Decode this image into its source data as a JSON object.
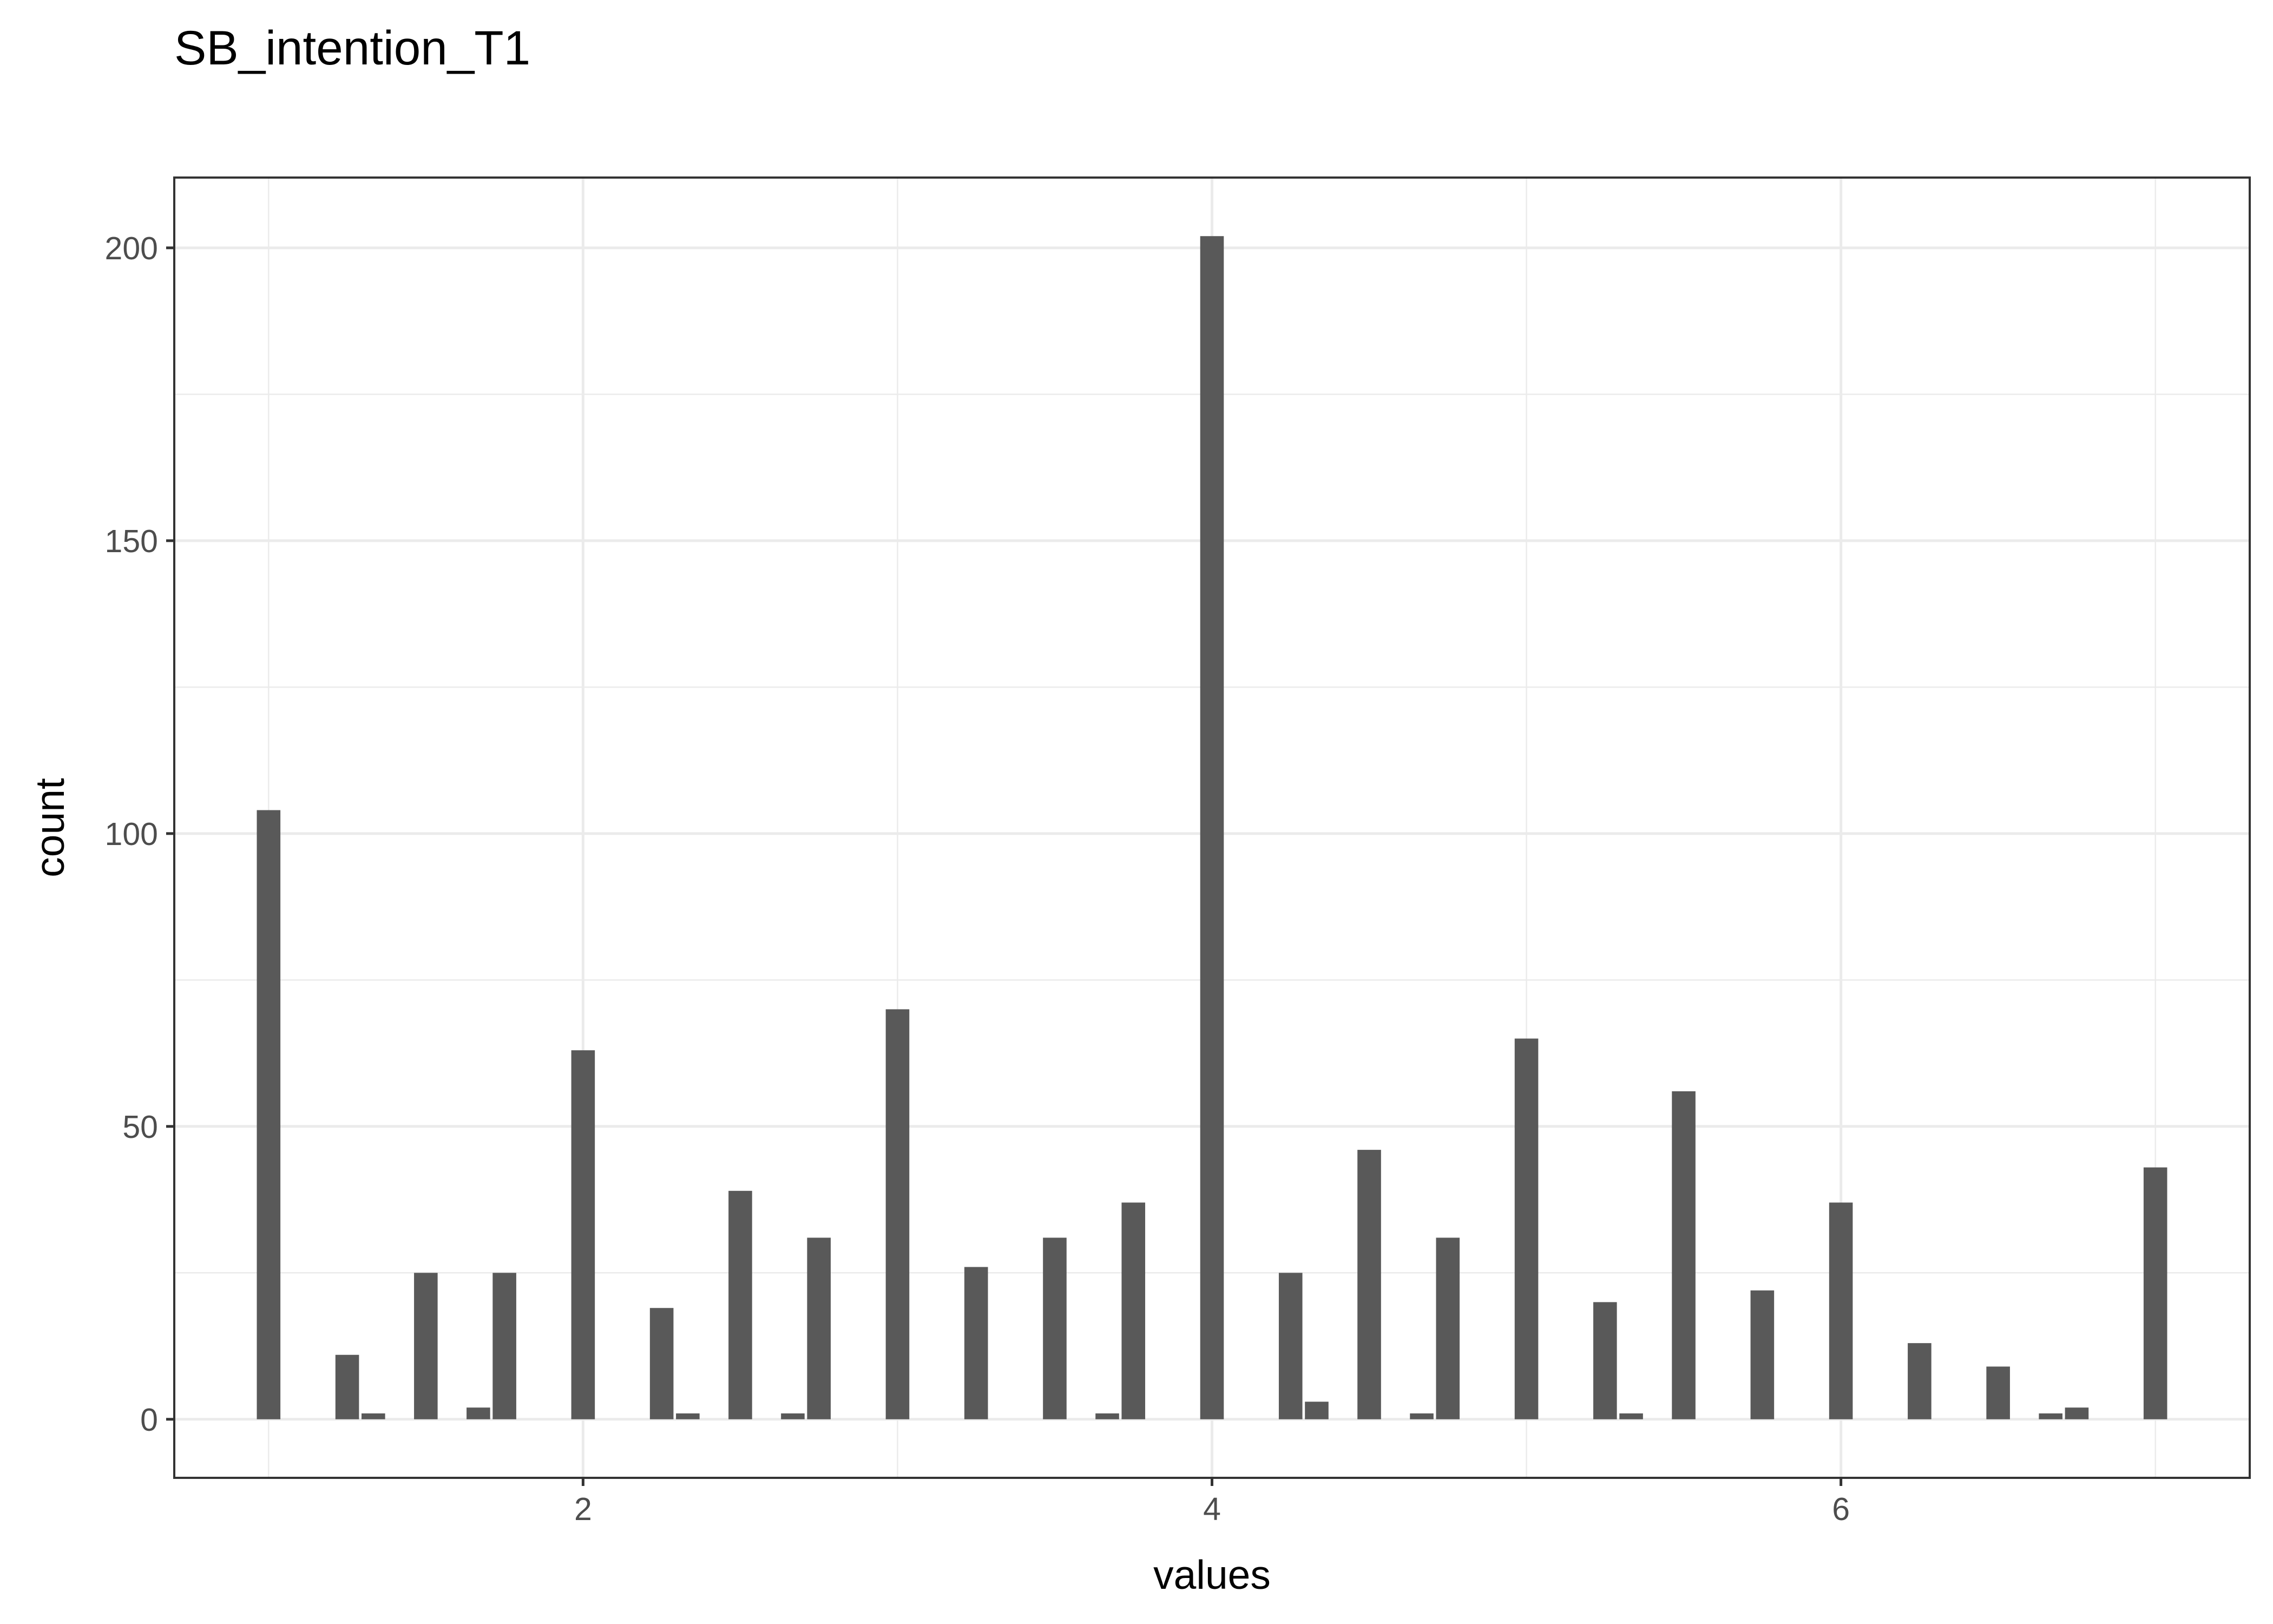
{
  "chart_data": {
    "type": "bar",
    "title": "SB_intention_T1",
    "xlabel": "values",
    "ylabel": "count",
    "xlim": [
      0.7,
      7.3
    ],
    "ylim": [
      -10,
      212
    ],
    "x_ticks": [
      2,
      4,
      6
    ],
    "y_ticks": [
      0,
      50,
      100,
      150,
      200
    ],
    "x_minor": [
      1,
      3,
      5,
      7
    ],
    "y_minor": [
      25,
      75,
      125,
      175
    ],
    "bar_width": 0.075,
    "grid": true,
    "legend": "none",
    "colors": {
      "bar": "#595959",
      "grid": "#ebebeb",
      "border": "#333333"
    },
    "bars": [
      {
        "x": 1.0,
        "y": 104
      },
      {
        "x": 1.25,
        "y": 11
      },
      {
        "x": 1.333,
        "y": 1
      },
      {
        "x": 1.5,
        "y": 25
      },
      {
        "x": 1.667,
        "y": 2
      },
      {
        "x": 1.75,
        "y": 25
      },
      {
        "x": 2.0,
        "y": 63
      },
      {
        "x": 2.25,
        "y": 19
      },
      {
        "x": 2.333,
        "y": 1
      },
      {
        "x": 2.5,
        "y": 39
      },
      {
        "x": 2.667,
        "y": 1
      },
      {
        "x": 2.75,
        "y": 31
      },
      {
        "x": 3.0,
        "y": 70
      },
      {
        "x": 3.25,
        "y": 26
      },
      {
        "x": 3.5,
        "y": 31
      },
      {
        "x": 3.667,
        "y": 1
      },
      {
        "x": 3.75,
        "y": 37
      },
      {
        "x": 4.0,
        "y": 202
      },
      {
        "x": 4.25,
        "y": 25
      },
      {
        "x": 4.333,
        "y": 3
      },
      {
        "x": 4.5,
        "y": 46
      },
      {
        "x": 4.667,
        "y": 1
      },
      {
        "x": 4.75,
        "y": 31
      },
      {
        "x": 5.0,
        "y": 65
      },
      {
        "x": 5.25,
        "y": 20
      },
      {
        "x": 5.333,
        "y": 1
      },
      {
        "x": 5.5,
        "y": 56
      },
      {
        "x": 5.75,
        "y": 22
      },
      {
        "x": 6.0,
        "y": 37
      },
      {
        "x": 6.25,
        "y": 13
      },
      {
        "x": 6.5,
        "y": 9
      },
      {
        "x": 6.667,
        "y": 1
      },
      {
        "x": 6.75,
        "y": 2
      },
      {
        "x": 7.0,
        "y": 43
      }
    ]
  }
}
